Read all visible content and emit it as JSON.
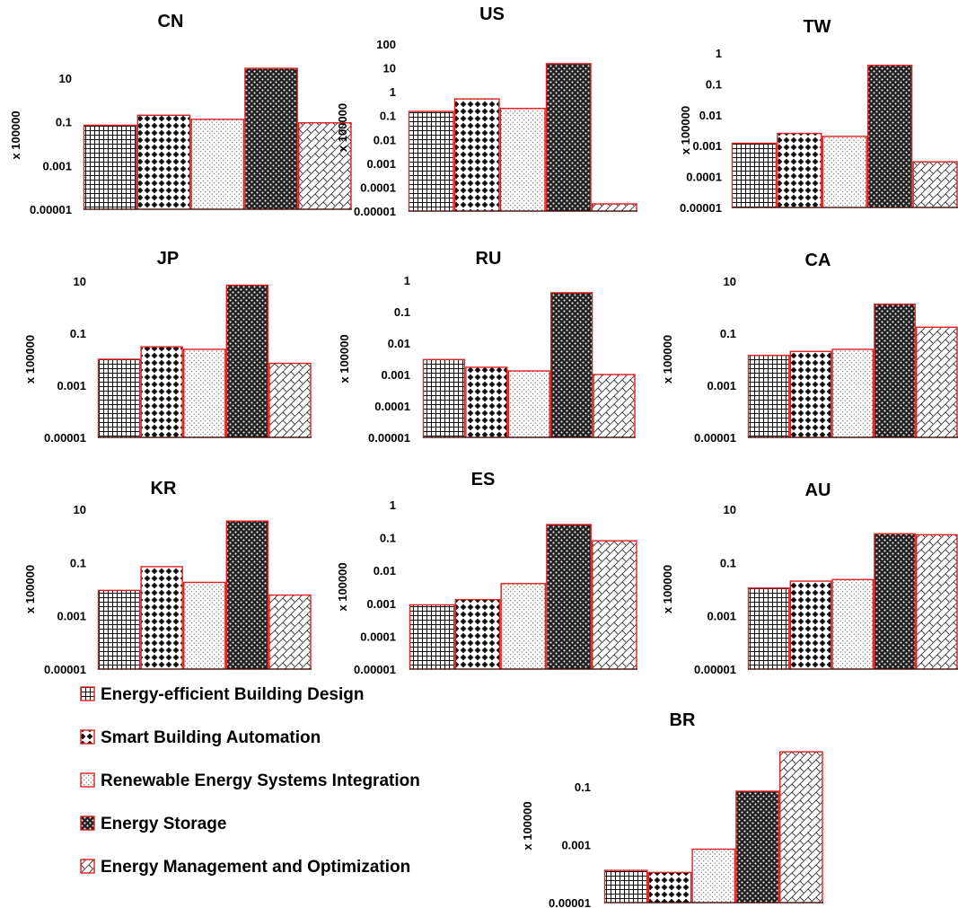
{
  "legend": [
    {
      "label": "Energy-efficient Building Design",
      "pattern": "grid"
    },
    {
      "label": "Smart Building Automation",
      "pattern": "diamond"
    },
    {
      "label": "Renewable Energy Systems Integration",
      "pattern": "dots"
    },
    {
      "label": "Energy Storage",
      "pattern": "checker"
    },
    {
      "label": "Energy Management and Optimization",
      "pattern": "diag"
    }
  ],
  "colors": {
    "bar_border": "#e02020",
    "pattern_ink": "#111111",
    "background": "#ffffff"
  },
  "chart_data": [
    {
      "type": "bar",
      "title": "CN",
      "ylabel": "x 100000",
      "scale": "log",
      "ylim": [
        1e-05,
        60
      ],
      "yticks": [
        "0.00001",
        "0.001",
        "0.1",
        "10"
      ],
      "values": [
        0.07,
        0.2,
        0.13,
        28,
        0.09
      ]
    },
    {
      "type": "bar",
      "title": "US",
      "ylabel": "x 100000",
      "scale": "log",
      "ylim": [
        1e-05,
        100
      ],
      "yticks": [
        "0.00001",
        "0.0001",
        "0.001",
        "0.01",
        "0.1",
        "1",
        "10",
        "100"
      ],
      "values": [
        0.15,
        0.5,
        0.2,
        15,
        2e-05
      ]
    },
    {
      "type": "bar",
      "title": "TW",
      "ylabel": "x 100000",
      "scale": "log",
      "ylim": [
        1e-05,
        1
      ],
      "yticks": [
        "0.00001",
        "0.0001",
        "0.001",
        "0.01",
        "0.1",
        "1"
      ],
      "values": [
        0.0012,
        0.0025,
        0.002,
        0.4,
        0.0003
      ]
    },
    {
      "type": "bar",
      "title": "JP",
      "ylabel": "x 100000",
      "scale": "log",
      "ylim": [
        1e-05,
        10
      ],
      "yticks": [
        "0.00001",
        "0.001",
        "0.1",
        "10"
      ],
      "values": [
        0.01,
        0.03,
        0.024,
        7,
        0.007
      ]
    },
    {
      "type": "bar",
      "title": "RU",
      "ylabel": "x 100000",
      "scale": "log",
      "ylim": [
        1e-05,
        1
      ],
      "yticks": [
        "0.00001",
        "0.0001",
        "0.001",
        "0.01",
        "0.1",
        "1"
      ],
      "values": [
        0.003,
        0.0017,
        0.0013,
        0.4,
        0.001
      ]
    },
    {
      "type": "bar",
      "title": "CA",
      "ylabel": "x 100000",
      "scale": "log",
      "ylim": [
        1e-05,
        10
      ],
      "yticks": [
        "0.00001",
        "0.001",
        "0.1",
        "10"
      ],
      "values": [
        0.014,
        0.02,
        0.024,
        1.3,
        0.17
      ]
    },
    {
      "type": "bar",
      "title": "KR",
      "ylabel": "x 100000",
      "scale": "log",
      "ylim": [
        1e-05,
        10
      ],
      "yticks": [
        "0.00001",
        "0.001",
        "0.1",
        "10"
      ],
      "values": [
        0.009,
        0.07,
        0.018,
        3.6,
        0.006
      ]
    },
    {
      "type": "bar",
      "title": "ES",
      "ylabel": "x 100000",
      "scale": "log",
      "ylim": [
        1e-05,
        1
      ],
      "yticks": [
        "0.00001",
        "0.0001",
        "0.001",
        "0.01",
        "0.1",
        "1"
      ],
      "values": [
        0.0009,
        0.0013,
        0.004,
        0.25,
        0.08
      ]
    },
    {
      "type": "bar",
      "title": "AU",
      "ylabel": "x 100000",
      "scale": "log",
      "ylim": [
        1e-05,
        10
      ],
      "yticks": [
        "0.00001",
        "0.001",
        "0.1",
        "10"
      ],
      "values": [
        0.011,
        0.02,
        0.023,
        1.2,
        1.1
      ]
    },
    {
      "type": "bar",
      "title": "BR",
      "ylabel": "x 100000",
      "scale": "log",
      "ylim": [
        1e-05,
        2
      ],
      "yticks": [
        "0.00001",
        "0.001",
        "0.1"
      ],
      "values": [
        0.00013,
        0.00011,
        0.0007,
        0.07,
        1.6
      ]
    }
  ]
}
